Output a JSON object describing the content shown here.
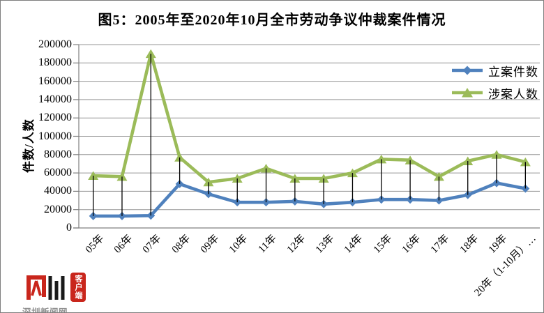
{
  "window": {
    "background": "#FFFFFF",
    "border_color": "#7E7E7E"
  },
  "chart_data": {
    "type": "line",
    "title": "图5：2005年至2020年10月全市劳动争议仲裁案件情况",
    "xlabel": "",
    "ylabel": "件数/人数",
    "ylim": [
      0,
      200000
    ],
    "ytick_step": 20000,
    "ytick_labels": [
      "0",
      "20000",
      "40000",
      "60000",
      "80000",
      "100000",
      "120000",
      "140000",
      "160000",
      "180000",
      "200000"
    ],
    "grid": "horizontal",
    "grid_color": "#969696",
    "axis_color": "#808080",
    "high_low_lines": true,
    "high_low_line_color": "#000000",
    "legend_position": "top-right-inside",
    "categories": [
      "05年",
      "06年",
      "07年",
      "08年",
      "09年",
      "10年",
      "11年",
      "12年",
      "13年",
      "14年",
      "15年",
      "16年",
      "17年",
      "18年",
      "19年",
      "20年（1-10月）…"
    ],
    "series": [
      {
        "name": "立案件数",
        "marker": "diamond",
        "color": "#4F81BD",
        "values": [
          13000,
          13000,
          13500,
          48000,
          37000,
          28000,
          28000,
          29000,
          26000,
          28000,
          31000,
          31000,
          30000,
          36000,
          49000,
          43000
        ]
      },
      {
        "name": "涉案人数",
        "marker": "triangle",
        "color": "#9BBB59",
        "values": [
          57000,
          56000,
          190000,
          77000,
          50000,
          54000,
          65000,
          54000,
          54000,
          60000,
          75000,
          74000,
          56000,
          73000,
          80000,
          72000
        ]
      }
    ]
  },
  "watermark": {
    "brand_text": "深圳新闻网",
    "badge_text": "客户端",
    "mark_red": "#C9261C",
    "mark_black": "#1A1A1A",
    "text_gray": "#8F8F8F"
  }
}
